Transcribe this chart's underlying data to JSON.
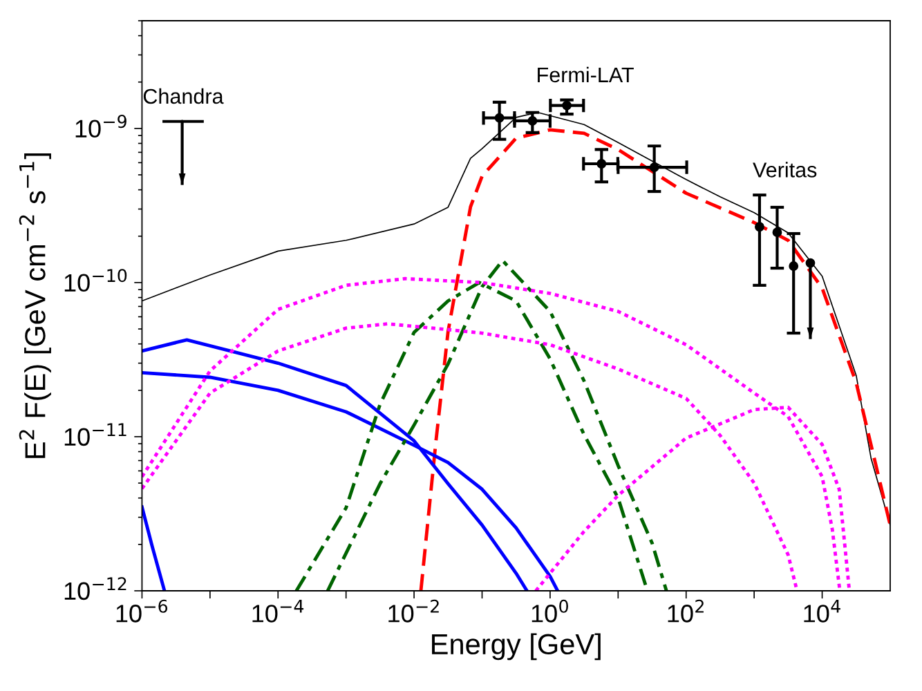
{
  "chart_data": {
    "type": "line",
    "xlabel": "Energy [GeV]",
    "ylabel": "E$^{2}$ F(E) [GeV cm$^{−2}$ s$^{−1}$]",
    "log": "xy",
    "xlim": [
      1e-06,
      100000.0
    ],
    "ylim": [
      1e-12,
      5e-09
    ],
    "xticks": [
      {
        "value": 1e-06,
        "label": "10$^{−6}$"
      },
      {
        "value": 1e-05,
        "label": null
      },
      {
        "value": 0.0001,
        "label": "10$^{−4}$"
      },
      {
        "value": 0.001,
        "label": null
      },
      {
        "value": 0.01,
        "label": "10$^{−2}$"
      },
      {
        "value": 0.1,
        "label": null
      },
      {
        "value": 1,
        "label": "10$^{0}$"
      },
      {
        "value": 10,
        "label": null
      },
      {
        "value": 100,
        "label": "10$^{2}$"
      },
      {
        "value": 1000,
        "label": null
      },
      {
        "value": 10000,
        "label": "10$^{4}$"
      }
    ],
    "yticks": [
      {
        "value": 1e-12,
        "label": "10$^{−12}$"
      },
      {
        "value": 1e-11,
        "label": "10$^{−11}$"
      },
      {
        "value": 1e-10,
        "label": "10$^{−10}$"
      },
      {
        "value": 1e-09,
        "label": "10$^{−9}$"
      }
    ],
    "grid": false,
    "series": [
      {
        "color": "#000000",
        "line_style": "solid",
        "x": [
          1e-06,
          1e-05,
          0.0001,
          0.001,
          0.01,
          0.0316,
          0.0676,
          0.1,
          0.316,
          0.66,
          3.16,
          10,
          100,
          316,
          1000,
          3162,
          10000,
          31623,
          52500,
          100000
        ],
        "values": [
          7.6e-11,
          1.12e-10,
          1.6e-10,
          1.88e-10,
          2.4e-10,
          3.08e-10,
          6.4e-10,
          7.4e-10,
          1.18e-09,
          1.27e-09,
          1.06e-09,
          8.1e-10,
          4.66e-10,
          3.6e-10,
          2.84e-10,
          2.1e-10,
          1.1e-10,
          2.5e-11,
          7.2e-12,
          2.67e-12
        ]
      },
      {
        "color": "#ff0000",
        "line_style": "dashed",
        "x": [
          0.0126,
          0.0209,
          0.0316,
          0.0676,
          0.1,
          0.316,
          1,
          3.16,
          10,
          100,
          1000,
          3162,
          10000,
          31623,
          100000
        ],
        "values": [
          1e-12,
          9.2e-12,
          4.8e-11,
          3.1e-10,
          4.9e-10,
          8.65e-10,
          9.8e-10,
          9.3e-10,
          7.3e-10,
          3.8e-10,
          2.45e-10,
          1.88e-10,
          9.2e-11,
          2.24e-11,
          2.67e-12
        ]
      },
      {
        "color": "#0000ff",
        "line_style": "solid",
        "x": [
          1e-06,
          4.57e-06,
          0.0001,
          0.001,
          0.01,
          0.0316,
          0.1,
          0.316,
          0.457
        ],
        "values": [
          3.6e-11,
          4.25e-11,
          3e-11,
          2.15e-11,
          9.4e-12,
          4.95e-12,
          2.67e-12,
          1.3e-12,
          1e-12
        ]
      },
      {
        "color": "#0000ff",
        "line_style": "solid",
        "x": [
          1e-06,
          1e-05,
          0.0001,
          0.001,
          0.01,
          0.0316,
          0.1,
          0.316,
          1,
          1.29
        ],
        "values": [
          2.6e-11,
          2.43e-11,
          2e-11,
          1.45e-11,
          8.8e-12,
          6.8e-12,
          4.56e-12,
          2.56e-12,
          1.24e-12,
          1e-12
        ]
      },
      {
        "color": "#0000ff",
        "line_style": "solid",
        "x": [
          1e-06,
          1.41e-06,
          2.14e-06
        ],
        "values": [
          3.5e-12,
          1.95e-12,
          1e-12
        ]
      },
      {
        "color": "#006400",
        "line_style": "dashdot",
        "x": [
          0.000186,
          0.001,
          0.00316,
          0.01,
          0.0316,
          0.0912,
          0.316,
          1,
          3.16,
          10,
          26.9
        ],
        "values": [
          1e-12,
          3.45e-12,
          1.62e-11,
          4.75e-11,
          7.6e-11,
          1e-10,
          7.6e-11,
          3.2e-11,
          1.03e-11,
          4e-12,
          1e-12
        ]
      },
      {
        "color": "#006400",
        "line_style": "dashdot",
        "x": [
          0.000537,
          0.00316,
          0.01,
          0.0316,
          0.1,
          0.2,
          1,
          3.16,
          10,
          31.6,
          51.3
        ],
        "values": [
          1e-12,
          4.95e-12,
          1.19e-11,
          2.96e-11,
          9.4e-11,
          1.39e-10,
          6.5e-11,
          2.3e-11,
          6.5e-12,
          2.04e-12,
          1e-12
        ]
      },
      {
        "color": "#ff00ff",
        "line_style": "dotted",
        "x": [
          1e-06,
          1e-05,
          0.0001,
          0.001,
          0.0074,
          0.1,
          1,
          10,
          100,
          1000,
          3162,
          10000,
          14100,
          18200
        ],
        "values": [
          5.5e-12,
          2.67e-11,
          6.7e-11,
          9.6e-11,
          1.06e-10,
          1e-10,
          8.5e-11,
          6.5e-11,
          3.95e-11,
          1.92e-11,
          1.35e-11,
          5.5e-12,
          2.5e-12,
          1e-12
        ]
      },
      {
        "color": "#ff00ff",
        "line_style": "dotted",
        "x": [
          1e-06,
          1e-05,
          0.0001,
          0.001,
          0.0041,
          0.0316,
          0.1,
          1,
          10,
          100,
          316,
          1000,
          3162,
          4270
        ],
        "values": [
          4.6e-12,
          1.92e-11,
          3.6e-11,
          5.06e-11,
          5.4e-11,
          4.95e-11,
          4.7e-11,
          3.95e-11,
          2.75e-11,
          1.77e-11,
          1.02e-11,
          5e-12,
          1.71e-12,
          1e-12
        ]
      },
      {
        "color": "#ff00ff",
        "line_style": "dotted",
        "x": [
          0.617,
          3.16,
          10,
          100,
          1000,
          3162,
          10000,
          17800,
          25100
        ],
        "values": [
          1e-12,
          2.43e-12,
          4.16e-12,
          9.8e-12,
          1.5e-11,
          1.55e-11,
          8.9e-12,
          4.56e-12,
          1e-12
        ]
      },
      {
        "type": "scatter",
        "name": "Chandra",
        "color": "#000000",
        "marker": "none",
        "x": [
          3.9e-06
        ],
        "values": [
          1.11e-09
        ],
        "xerrors": [
          [
            2e-06,
            8.1e-06
          ]
        ],
        "errors": [
          [
            4.3e-10,
            1.11e-09
          ]
        ]
      },
      {
        "type": "scatter",
        "name": "Fermi-LAT",
        "color": "#000000",
        "marker": "circle",
        "x": [
          0.18,
          0.55,
          1.76,
          5.7,
          34
        ],
        "values": [
          1.17e-09,
          1.12e-09,
          1.41e-09,
          5.9e-10,
          5.6e-10
        ],
        "xerrors": [
          [
            0.105,
            0.3
          ],
          [
            0.3,
            1.0
          ],
          [
            1.01,
            3.1
          ],
          [
            3.1,
            9.9
          ],
          [
            10,
            102
          ]
        ],
        "errors": [
          [
            8.5e-10,
            1.48e-09
          ],
          [
            9.4e-10,
            1.27e-09
          ],
          [
            1.24e-09,
            1.53e-09
          ],
          [
            4.5e-10,
            7.3e-10
          ],
          [
            3.9e-10,
            7.7e-10
          ]
        ]
      },
      {
        "type": "scatter",
        "name": "Veritas",
        "color": "#000000",
        "marker": "circle",
        "x": [
          1200,
          2180,
          3800,
          6700
        ],
        "values": [
          2.3e-10,
          2.12e-10,
          1.28e-10,
          1.34e-10
        ],
        "errors": [
          [
            9.6e-11,
            3.7e-10
          ],
          [
            1.24e-10,
            3.08e-10
          ],
          [
            4.7e-11,
            2.08e-10
          ],
          [
            4.3e-11,
            1.34e-10
          ]
        ]
      }
    ]
  }
}
